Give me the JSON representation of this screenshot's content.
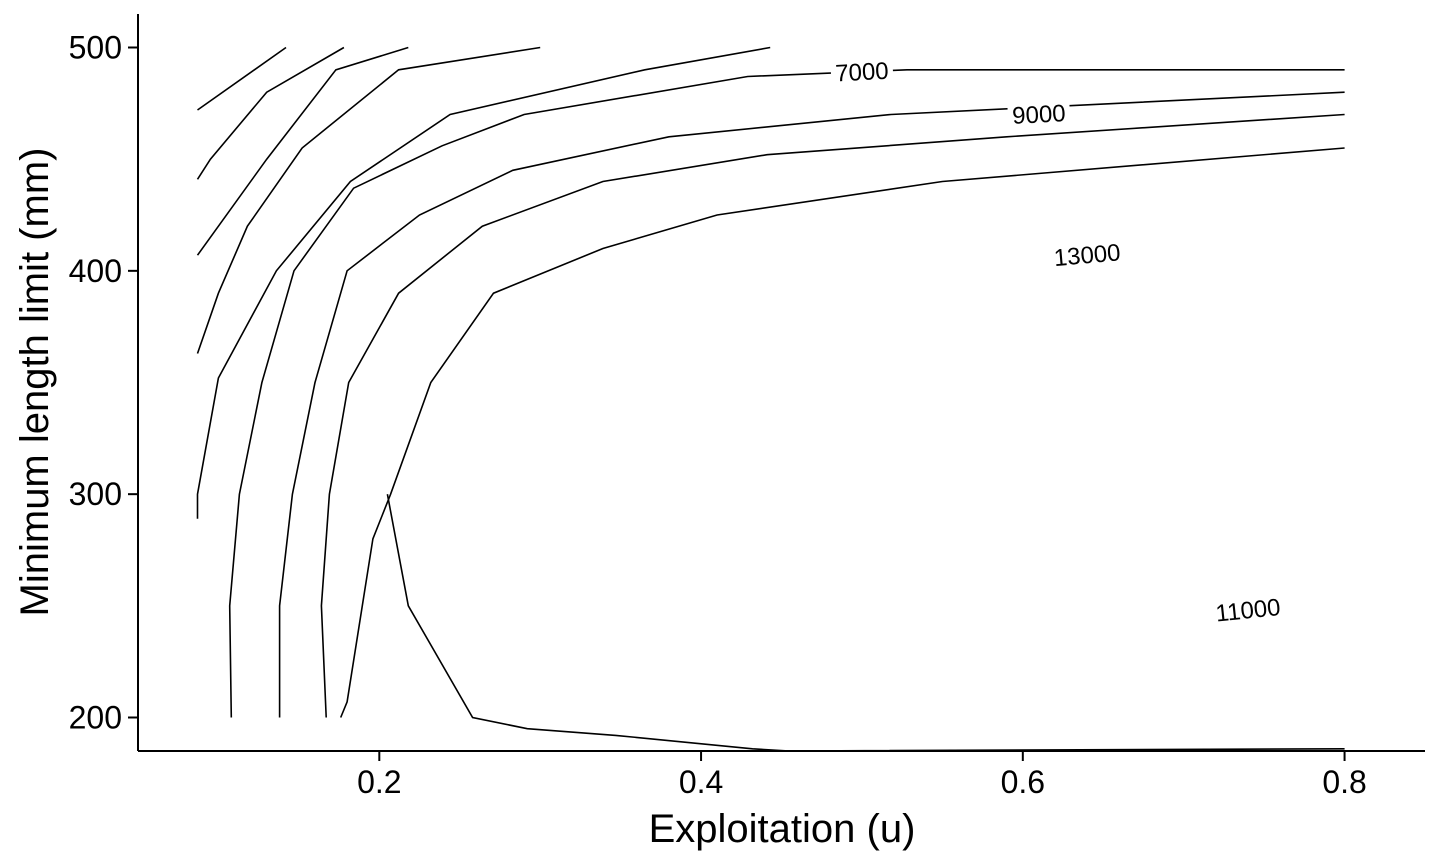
{
  "chart_data": {
    "type": "contour",
    "title": "",
    "xlabel": "Exploitation (u)",
    "ylabel": "Minimum length limit (mm)",
    "xlim": [
      0.05,
      0.85
    ],
    "ylim": [
      185,
      515
    ],
    "x_ticks": [
      {
        "value": 0.2,
        "label": "0.2"
      },
      {
        "value": 0.4,
        "label": "0.4"
      },
      {
        "value": 0.6,
        "label": "0.6"
      },
      {
        "value": 0.8,
        "label": "0.8"
      }
    ],
    "y_ticks": [
      {
        "value": 200,
        "label": "200"
      },
      {
        "value": 300,
        "label": "300"
      },
      {
        "value": 400,
        "label": "400"
      },
      {
        "value": 500,
        "label": "500"
      }
    ],
    "grid": false,
    "contour_labels": [
      {
        "text": "7000",
        "x": 0.5,
        "y": 489,
        "angle": -3
      },
      {
        "text": "9000",
        "x": 0.61,
        "y": 470,
        "angle": -3
      },
      {
        "text": "13000",
        "x": 0.64,
        "y": 407,
        "angle": -5
      },
      {
        "text": "11000",
        "x": 0.74,
        "y": 248,
        "angle": -6
      }
    ],
    "contours": [
      {
        "points": [
          [
            0.087,
            472
          ],
          [
            0.142,
            500
          ]
        ]
      },
      {
        "points": [
          [
            0.087,
            441
          ],
          [
            0.095,
            450
          ],
          [
            0.13,
            480
          ],
          [
            0.178,
            500
          ]
        ]
      },
      {
        "points": [
          [
            0.087,
            407
          ],
          [
            0.13,
            450
          ],
          [
            0.173,
            490
          ],
          [
            0.218,
            500
          ]
        ]
      },
      {
        "points": [
          [
            0.087,
            363
          ],
          [
            0.1,
            390
          ],
          [
            0.118,
            420
          ],
          [
            0.152,
            455
          ],
          [
            0.212,
            490
          ],
          [
            0.3,
            500
          ]
        ]
      },
      {
        "points": [
          [
            0.087,
            289
          ],
          [
            0.087,
            300
          ],
          [
            0.1,
            352
          ],
          [
            0.136,
            400
          ],
          [
            0.182,
            440
          ],
          [
            0.244,
            470
          ],
          [
            0.365,
            490
          ],
          [
            0.443,
            500
          ]
        ]
      },
      {
        "points": [
          [
            0.108,
            200
          ],
          [
            0.107,
            250
          ],
          [
            0.113,
            300
          ],
          [
            0.127,
            350
          ],
          [
            0.147,
            400
          ],
          [
            0.184,
            437
          ],
          [
            0.239,
            456
          ],
          [
            0.29,
            470
          ],
          [
            0.429,
            487
          ],
          [
            0.528,
            490
          ],
          [
            0.8,
            490
          ]
        ]
      },
      {
        "points": [
          [
            0.138,
            200
          ],
          [
            0.138,
            250
          ],
          [
            0.146,
            300
          ],
          [
            0.16,
            350
          ],
          [
            0.18,
            400
          ],
          [
            0.225,
            425
          ],
          [
            0.283,
            445
          ],
          [
            0.38,
            460
          ],
          [
            0.518,
            470
          ],
          [
            0.8,
            480
          ]
        ]
      },
      {
        "points": [
          [
            0.167,
            200
          ],
          [
            0.164,
            250
          ],
          [
            0.169,
            300
          ],
          [
            0.181,
            350
          ],
          [
            0.212,
            390
          ],
          [
            0.264,
            420
          ],
          [
            0.339,
            440
          ],
          [
            0.441,
            452
          ],
          [
            0.59,
            460
          ],
          [
            0.8,
            470
          ]
        ]
      },
      {
        "points": [
          [
            0.176,
            200
          ],
          [
            0.18,
            207
          ],
          [
            0.196,
            280
          ],
          [
            0.207,
            300
          ],
          [
            0.232,
            350
          ],
          [
            0.271,
            390
          ],
          [
            0.339,
            410
          ],
          [
            0.41,
            425
          ],
          [
            0.55,
            440
          ],
          [
            0.8,
            455
          ]
        ]
      },
      {
        "points": [
          [
            0.205,
            300
          ],
          [
            0.218,
            250
          ],
          [
            0.258,
            200
          ],
          [
            0.292,
            195
          ],
          [
            0.347,
            192
          ],
          [
            0.432,
            186
          ],
          [
            0.455,
            185
          ],
          [
            0.8,
            186
          ]
        ]
      }
    ]
  }
}
